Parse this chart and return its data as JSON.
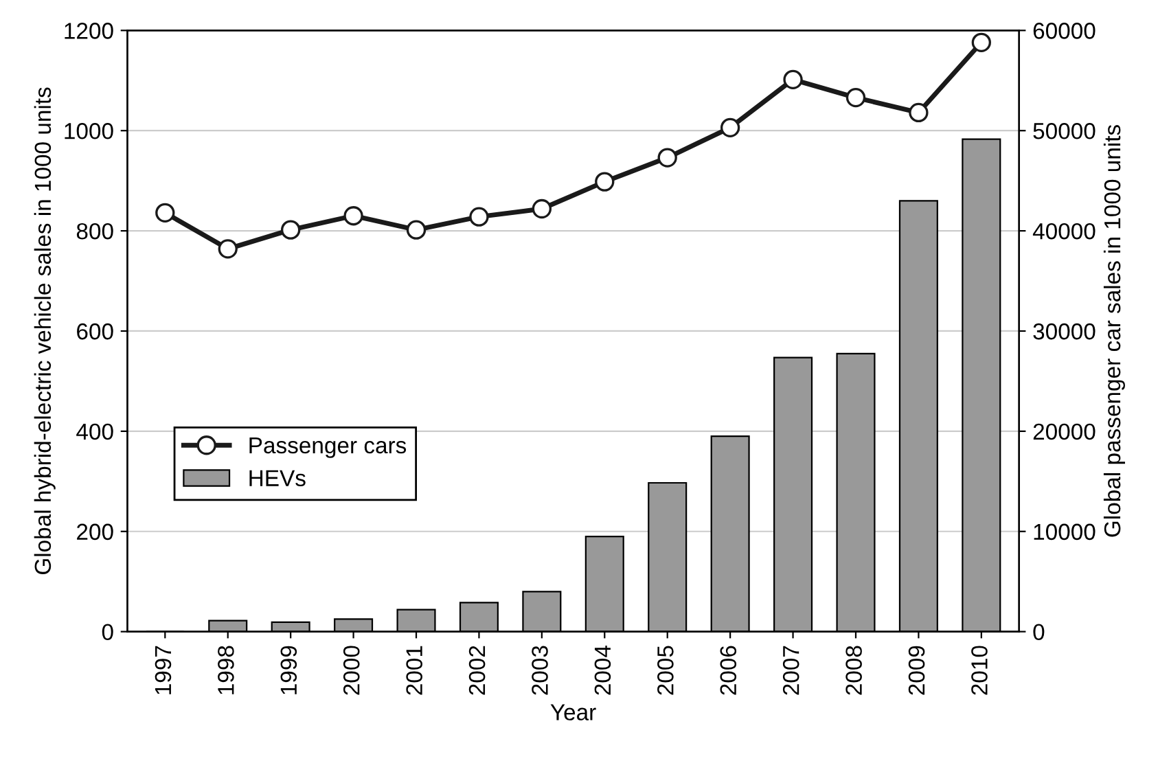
{
  "chart_data": {
    "type": "bar",
    "xlabel": "Year",
    "ylabel": "Global hybrid-electric vehicle sales in 1000 units",
    "y2label": "Global passenger car sales in 1000 units",
    "categories": [
      "1997",
      "1998",
      "1999",
      "2000",
      "2001",
      "2002",
      "2003",
      "2004",
      "2005",
      "2006",
      "2007",
      "2008",
      "2009",
      "2010"
    ],
    "series": [
      {
        "name": "Passenger cars",
        "type": "line",
        "axis": "y2",
        "color": "#1a1a1a",
        "marker": "circle",
        "values": [
          41800,
          38200,
          40100,
          41500,
          40100,
          41400,
          42200,
          44900,
          47300,
          50300,
          55100,
          53300,
          51800,
          58800
        ]
      },
      {
        "name": "HEVs",
        "color": "#999999",
        "values": [
          0,
          22,
          19,
          25,
          44,
          58,
          80,
          190,
          297,
          390,
          547,
          555,
          860,
          983
        ]
      }
    ],
    "ylim": [
      0,
      1200
    ],
    "yticks": [
      0,
      200,
      400,
      600,
      800,
      1000,
      1200
    ],
    "y2lim": [
      0,
      60000
    ],
    "y2ticks": [
      0,
      10000,
      20000,
      30000,
      40000,
      50000,
      60000
    ],
    "grid": "y",
    "legend": "bottom left"
  }
}
